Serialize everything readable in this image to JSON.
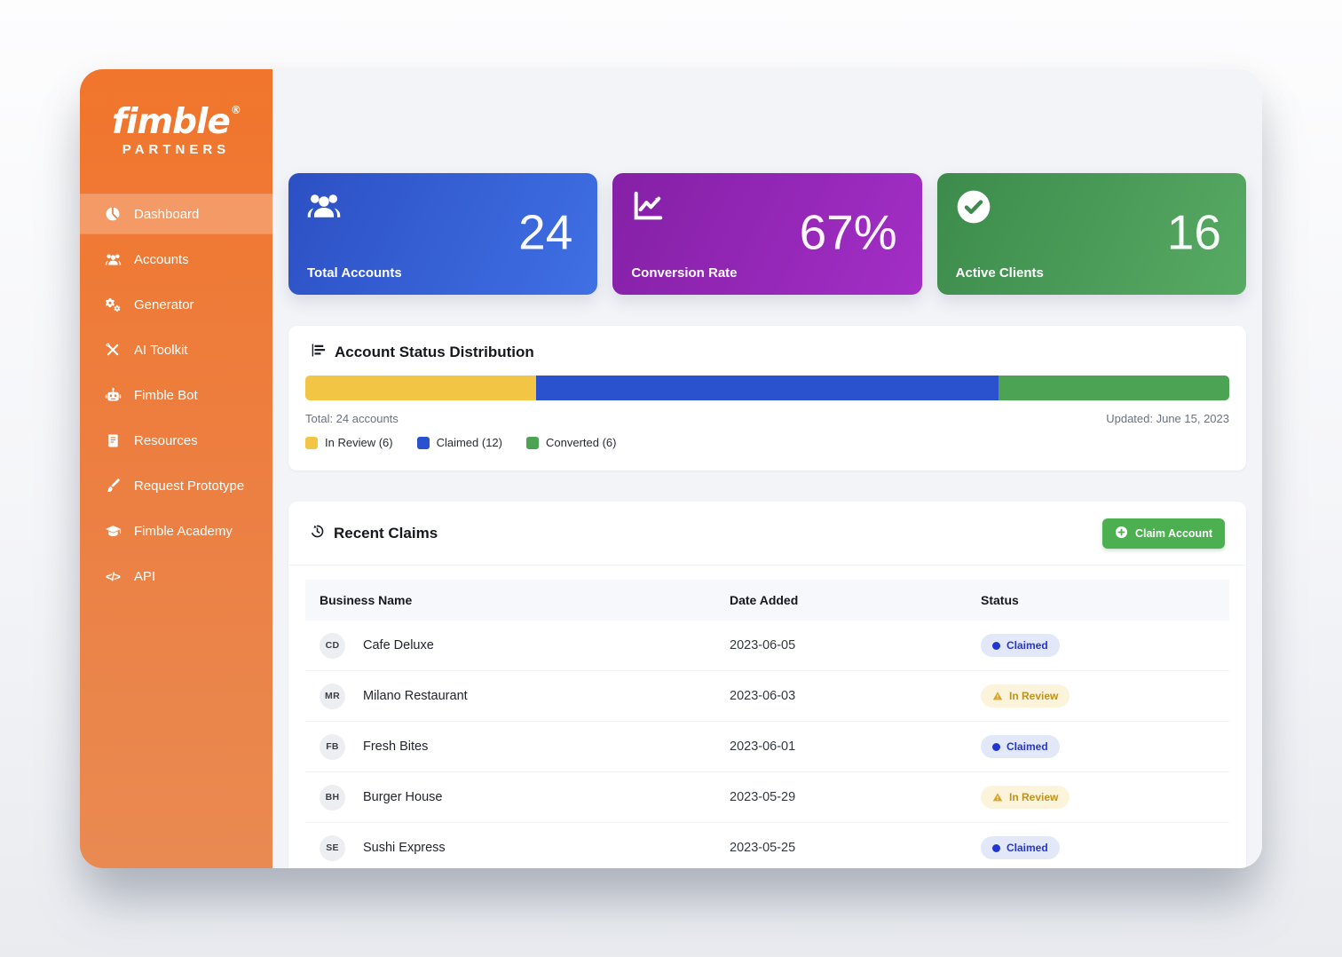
{
  "brand": {
    "name": "fimble",
    "reg": "®",
    "sub": "PARTNERS"
  },
  "colors": {
    "sidebar_orange": "#EE7D3B",
    "stat_blue": "#2F5BD0",
    "stat_purple": "#9226B8",
    "stat_green": "#479A56",
    "status_in_review": "#F2C644",
    "status_claimed": "#2A52CE",
    "status_converted": "#4BA353",
    "button_green": "#4CAF50"
  },
  "sidebar": {
    "items": [
      {
        "label": "Dashboard",
        "icon": "gauge-pie-icon",
        "active": true
      },
      {
        "label": "Accounts",
        "icon": "users-icon",
        "active": false
      },
      {
        "label": "Generator",
        "icon": "gears-icon",
        "active": false
      },
      {
        "label": "AI Toolkit",
        "icon": "tools-icon",
        "active": false
      },
      {
        "label": "Fimble Bot",
        "icon": "robot-icon",
        "active": false
      },
      {
        "label": "Resources",
        "icon": "book-icon",
        "active": false
      },
      {
        "label": "Request Prototype",
        "icon": "brush-icon",
        "active": false
      },
      {
        "label": "Fimble Academy",
        "icon": "graduation-cap-icon",
        "active": false
      },
      {
        "label": "API",
        "icon": "code-icon",
        "active": false
      }
    ]
  },
  "stats": [
    {
      "label": "Total Accounts",
      "value": "24",
      "icon": "users-icon",
      "color": "#2F5BD0"
    },
    {
      "label": "Conversion Rate",
      "value": "67%",
      "icon": "trend-line-icon",
      "color": "#9226B8"
    },
    {
      "label": "Active Clients",
      "value": "16",
      "icon": "check-circle-icon",
      "color": "#479A56"
    }
  ],
  "distribution": {
    "title": "Account Status Distribution",
    "total_label": "Total: 24 accounts",
    "updated_label": "Updated: June 15, 2023",
    "legend": [
      {
        "label": "In Review (6)",
        "color": "#F2C644"
      },
      {
        "label": "Claimed (12)",
        "color": "#2A52CE"
      },
      {
        "label": "Converted (6)",
        "color": "#4BA353"
      }
    ],
    "chart_data": {
      "type": "bar",
      "stacked": true,
      "categories": [
        "In Review",
        "Claimed",
        "Converted"
      ],
      "values": [
        6,
        12,
        6
      ],
      "total": 24,
      "colors": [
        "#F2C644",
        "#2A52CE",
        "#4BA353"
      ],
      "title": "Account Status Distribution"
    }
  },
  "claims": {
    "title": "Recent Claims",
    "button_label": "Claim Account",
    "columns": [
      "Business Name",
      "Date Added",
      "Status"
    ],
    "rows": [
      {
        "initials": "CD",
        "name": "Cafe Deluxe",
        "date": "2023-06-05",
        "status": {
          "label": "Claimed",
          "type": "claimed",
          "icon": "dot"
        }
      },
      {
        "initials": "MR",
        "name": "Milano Restaurant",
        "date": "2023-06-03",
        "status": {
          "label": "In Review",
          "type": "review",
          "icon": "warning-triangle"
        }
      },
      {
        "initials": "FB",
        "name": "Fresh Bites",
        "date": "2023-06-01",
        "status": {
          "label": "Claimed",
          "type": "claimed",
          "icon": "dot"
        }
      },
      {
        "initials": "BH",
        "name": "Burger House",
        "date": "2023-05-29",
        "status": {
          "label": "In Review",
          "type": "review",
          "icon": "warning-triangle"
        }
      },
      {
        "initials": "SE",
        "name": "Sushi Express",
        "date": "2023-05-25",
        "status": {
          "label": "Claimed",
          "type": "claimed",
          "icon": "dot"
        }
      }
    ]
  }
}
